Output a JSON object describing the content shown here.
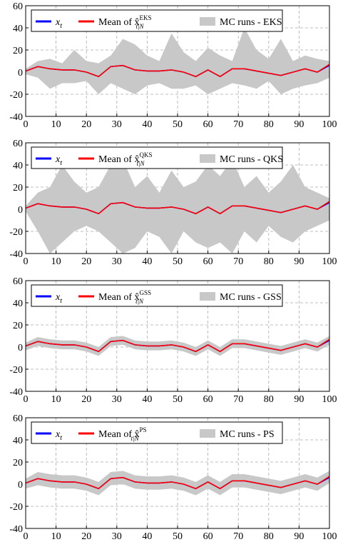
{
  "chart_data": [
    {
      "type": "line",
      "xlim": [
        0,
        100
      ],
      "ylim": [
        -40,
        60
      ],
      "xticks": [
        0,
        10,
        20,
        30,
        40,
        50,
        60,
        70,
        80,
        90,
        100
      ],
      "yticks": [
        -40,
        -20,
        0,
        20,
        40,
        60
      ],
      "grid": true,
      "x": [
        0,
        4,
        8,
        12,
        16,
        20,
        24,
        28,
        32,
        36,
        40,
        44,
        48,
        52,
        56,
        60,
        64,
        68,
        72,
        76,
        80,
        84,
        88,
        92,
        96,
        100
      ],
      "series": [
        {
          "name": "x",
          "sub": "t",
          "color": "#0000ff",
          "values": [
            1,
            5,
            3,
            2,
            2,
            0,
            -4,
            5,
            6,
            2,
            1,
            1,
            2,
            0,
            -4,
            2,
            -4,
            3,
            3,
            1,
            -1,
            -3,
            0,
            3,
            0,
            6
          ]
        },
        {
          "name": "Mean of x̂",
          "sub": "t|N",
          "sup": "EKS",
          "color": "#ff0000",
          "values": [
            1,
            5,
            3,
            2,
            2,
            0,
            -4,
            5,
            6,
            2,
            1,
            1,
            2,
            0,
            -4,
            2,
            -4,
            3,
            3,
            1,
            -1,
            -3,
            0,
            3,
            0,
            7
          ]
        }
      ],
      "band": {
        "name": "MC runs - EKS",
        "color": "#c8c8c8",
        "upper": [
          3,
          10,
          12,
          8,
          20,
          10,
          8,
          15,
          30,
          25,
          15,
          10,
          35,
          18,
          10,
          22,
          15,
          10,
          40,
          20,
          12,
          30,
          10,
          15,
          12,
          10
        ],
        "lower": [
          -2,
          -5,
          -15,
          -10,
          -10,
          -8,
          -20,
          -10,
          -15,
          -20,
          -12,
          -10,
          -15,
          -15,
          -12,
          -20,
          -15,
          -10,
          -12,
          -15,
          -8,
          -20,
          -15,
          -12,
          -10,
          -5
        ]
      }
    },
    {
      "type": "line",
      "xlim": [
        0,
        100
      ],
      "ylim": [
        -40,
        60
      ],
      "xticks": [
        0,
        10,
        20,
        30,
        40,
        50,
        60,
        70,
        80,
        90,
        100
      ],
      "yticks": [
        -40,
        -20,
        0,
        20,
        40,
        60
      ],
      "grid": true,
      "x": [
        0,
        4,
        8,
        12,
        16,
        20,
        24,
        28,
        32,
        36,
        40,
        44,
        48,
        52,
        56,
        60,
        64,
        68,
        72,
        76,
        80,
        84,
        88,
        92,
        96,
        100
      ],
      "series": [
        {
          "name": "x",
          "sub": "t",
          "color": "#0000ff",
          "values": [
            1,
            5,
            3,
            2,
            2,
            0,
            -4,
            5,
            6,
            2,
            1,
            1,
            2,
            0,
            -4,
            2,
            -4,
            3,
            3,
            1,
            -1,
            -3,
            0,
            3,
            0,
            6
          ]
        },
        {
          "name": "Mean of x̂",
          "sub": "t|N",
          "sup": "QKS",
          "color": "#ff0000",
          "values": [
            1,
            5,
            3,
            2,
            2,
            0,
            -4,
            5,
            6,
            2,
            1,
            1,
            2,
            0,
            -4,
            2,
            -4,
            3,
            3,
            1,
            -1,
            -3,
            0,
            3,
            0,
            7
          ]
        }
      ],
      "band": {
        "name": "MC runs - QKS",
        "color": "#c8c8c8",
        "upper": [
          3,
          15,
          20,
          40,
          25,
          15,
          20,
          40,
          45,
          20,
          30,
          15,
          35,
          20,
          25,
          40,
          30,
          45,
          20,
          30,
          15,
          25,
          40,
          20,
          15,
          10
        ],
        "lower": [
          -2,
          -20,
          -40,
          -30,
          -20,
          -15,
          -20,
          -30,
          -40,
          -35,
          -20,
          -25,
          -40,
          -20,
          -30,
          -35,
          -30,
          -40,
          -20,
          -30,
          -15,
          -25,
          -30,
          -20,
          -15,
          -10
        ]
      }
    },
    {
      "type": "line",
      "xlim": [
        0,
        100
      ],
      "ylim": [
        -40,
        60
      ],
      "xticks": [
        0,
        10,
        20,
        30,
        40,
        50,
        60,
        70,
        80,
        90,
        100
      ],
      "yticks": [
        -40,
        -20,
        0,
        20,
        40,
        60
      ],
      "grid": true,
      "x": [
        0,
        4,
        8,
        12,
        16,
        20,
        24,
        28,
        32,
        36,
        40,
        44,
        48,
        52,
        56,
        60,
        64,
        68,
        72,
        76,
        80,
        84,
        88,
        92,
        96,
        100
      ],
      "series": [
        {
          "name": "x",
          "sub": "t",
          "color": "#0000ff",
          "values": [
            1,
            5,
            3,
            2,
            2,
            0,
            -4,
            5,
            6,
            2,
            1,
            1,
            2,
            0,
            -4,
            2,
            -4,
            3,
            3,
            1,
            -1,
            -3,
            0,
            3,
            0,
            6
          ]
        },
        {
          "name": "Mean of x̂",
          "sub": "t|N",
          "sup": "GSS",
          "color": "#ff0000",
          "values": [
            1,
            5,
            3,
            2,
            2,
            0,
            -4,
            5,
            6,
            2,
            1,
            1,
            2,
            0,
            -4,
            2,
            -4,
            3,
            3,
            1,
            -1,
            -3,
            0,
            3,
            0,
            7
          ]
        }
      ],
      "band": {
        "name": "MC runs - GSS",
        "color": "#c8c8c8",
        "upper": [
          4,
          9,
          7,
          6,
          6,
          4,
          0,
          9,
          10,
          6,
          5,
          5,
          6,
          4,
          0,
          6,
          0,
          7,
          7,
          5,
          3,
          1,
          4,
          7,
          4,
          10
        ],
        "lower": [
          -3,
          1,
          -1,
          -2,
          -2,
          -4,
          -8,
          1,
          2,
          -2,
          -3,
          -3,
          -2,
          -4,
          -8,
          -2,
          -8,
          -1,
          -1,
          -3,
          -5,
          -7,
          -4,
          -1,
          -4,
          2
        ]
      }
    },
    {
      "type": "line",
      "xlim": [
        0,
        100
      ],
      "ylim": [
        -40,
        60
      ],
      "xticks": [
        0,
        10,
        20,
        30,
        40,
        50,
        60,
        70,
        80,
        90,
        100
      ],
      "yticks": [
        -40,
        -20,
        0,
        20,
        40,
        60
      ],
      "grid": true,
      "x": [
        0,
        4,
        8,
        12,
        16,
        20,
        24,
        28,
        32,
        36,
        40,
        44,
        48,
        52,
        56,
        60,
        64,
        68,
        72,
        76,
        80,
        84,
        88,
        92,
        96,
        100
      ],
      "series": [
        {
          "name": "x",
          "sub": "t",
          "color": "#0000ff",
          "values": [
            1,
            5,
            3,
            2,
            2,
            0,
            -4,
            5,
            6,
            2,
            1,
            1,
            2,
            0,
            -4,
            2,
            -4,
            3,
            3,
            1,
            -1,
            -3,
            0,
            3,
            0,
            6
          ]
        },
        {
          "name": "Mean of x̂",
          "sub": "t|N",
          "sup": "PS",
          "color": "#ff0000",
          "values": [
            1,
            5,
            3,
            2,
            2,
            0,
            -4,
            5,
            6,
            2,
            1,
            1,
            2,
            0,
            -4,
            2,
            -4,
            3,
            3,
            1,
            -1,
            -3,
            0,
            3,
            0,
            7
          ]
        }
      ],
      "band": {
        "name": "MC runs - PS",
        "color": "#c8c8c8",
        "upper": [
          5,
          11,
          9,
          8,
          8,
          6,
          2,
          11,
          12,
          8,
          7,
          7,
          8,
          6,
          2,
          8,
          2,
          9,
          9,
          7,
          5,
          3,
          6,
          9,
          6,
          12
        ],
        "lower": [
          -4,
          -1,
          -3,
          -4,
          -4,
          -6,
          -10,
          -1,
          0,
          -4,
          -5,
          -5,
          -4,
          -6,
          -10,
          -4,
          -10,
          -3,
          -3,
          -5,
          -7,
          -9,
          -6,
          -3,
          -6,
          1
        ]
      }
    }
  ]
}
